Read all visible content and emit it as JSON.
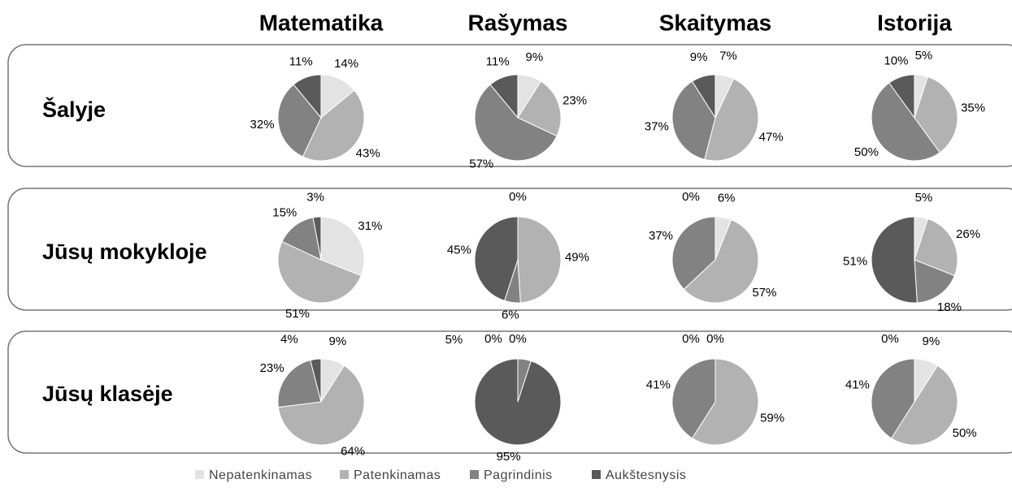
{
  "columns": [
    "Matematika",
    "Rašymas",
    "Skaitymas",
    "Istorija"
  ],
  "rows": [
    "Šalyje",
    "Jūsų mokykloje",
    "Jūsų klasėje"
  ],
  "categories": [
    "Nepatenkinamas",
    "Patenkinamas",
    "Pagrindinis",
    "Aukštesnysis"
  ],
  "colors": [
    "#e3e3e3",
    "#b2b2b2",
    "#828282",
    "#5a5a5a"
  ],
  "chart_data": [
    {
      "type": "pie",
      "values": [
        14,
        43,
        32,
        11
      ],
      "value_labels": [
        "14%",
        "43%",
        "32%",
        "11%"
      ]
    },
    {
      "type": "pie",
      "values": [
        9,
        23,
        57,
        11
      ],
      "value_labels": [
        "9%",
        "23%",
        "57%",
        "11%"
      ]
    },
    {
      "type": "pie",
      "values": [
        7,
        47,
        37,
        9
      ],
      "value_labels": [
        "7%",
        "47%",
        "37%",
        "9%"
      ]
    },
    {
      "type": "pie",
      "values": [
        5,
        35,
        50,
        10
      ],
      "value_labels": [
        "5%",
        "35%",
        "50%",
        "10%"
      ]
    },
    {
      "type": "pie",
      "values": [
        31,
        51,
        15,
        3
      ],
      "value_labels": [
        "31%",
        "51%",
        "15%",
        "3%"
      ]
    },
    {
      "type": "pie",
      "values": [
        0,
        49,
        6,
        45
      ],
      "value_labels": [
        "0%",
        "49%",
        "6%",
        "45%"
      ]
    },
    {
      "type": "pie",
      "values": [
        6,
        57,
        37,
        0
      ],
      "value_labels": [
        "6%",
        "57%",
        "37%",
        "0%"
      ]
    },
    {
      "type": "pie",
      "values": [
        5,
        26,
        18,
        51
      ],
      "value_labels": [
        "5%",
        "26%",
        "18%",
        "51%"
      ]
    },
    {
      "type": "pie",
      "values": [
        9,
        64,
        23,
        4
      ],
      "value_labels": [
        "9%",
        "64%",
        "23%",
        "4%"
      ]
    },
    {
      "type": "pie",
      "values": [
        0,
        0,
        5,
        95
      ],
      "value_labels": [
        "0%",
        "0%",
        "5%",
        "95%"
      ]
    },
    {
      "type": "pie",
      "values": [
        0,
        59,
        41,
        0
      ],
      "value_labels": [
        "0%",
        "59%",
        "41%",
        "0%"
      ]
    },
    {
      "type": "pie",
      "values": [
        9,
        50,
        41,
        0
      ],
      "value_labels": [
        "9%",
        "50%",
        "41%",
        "0%"
      ]
    }
  ]
}
